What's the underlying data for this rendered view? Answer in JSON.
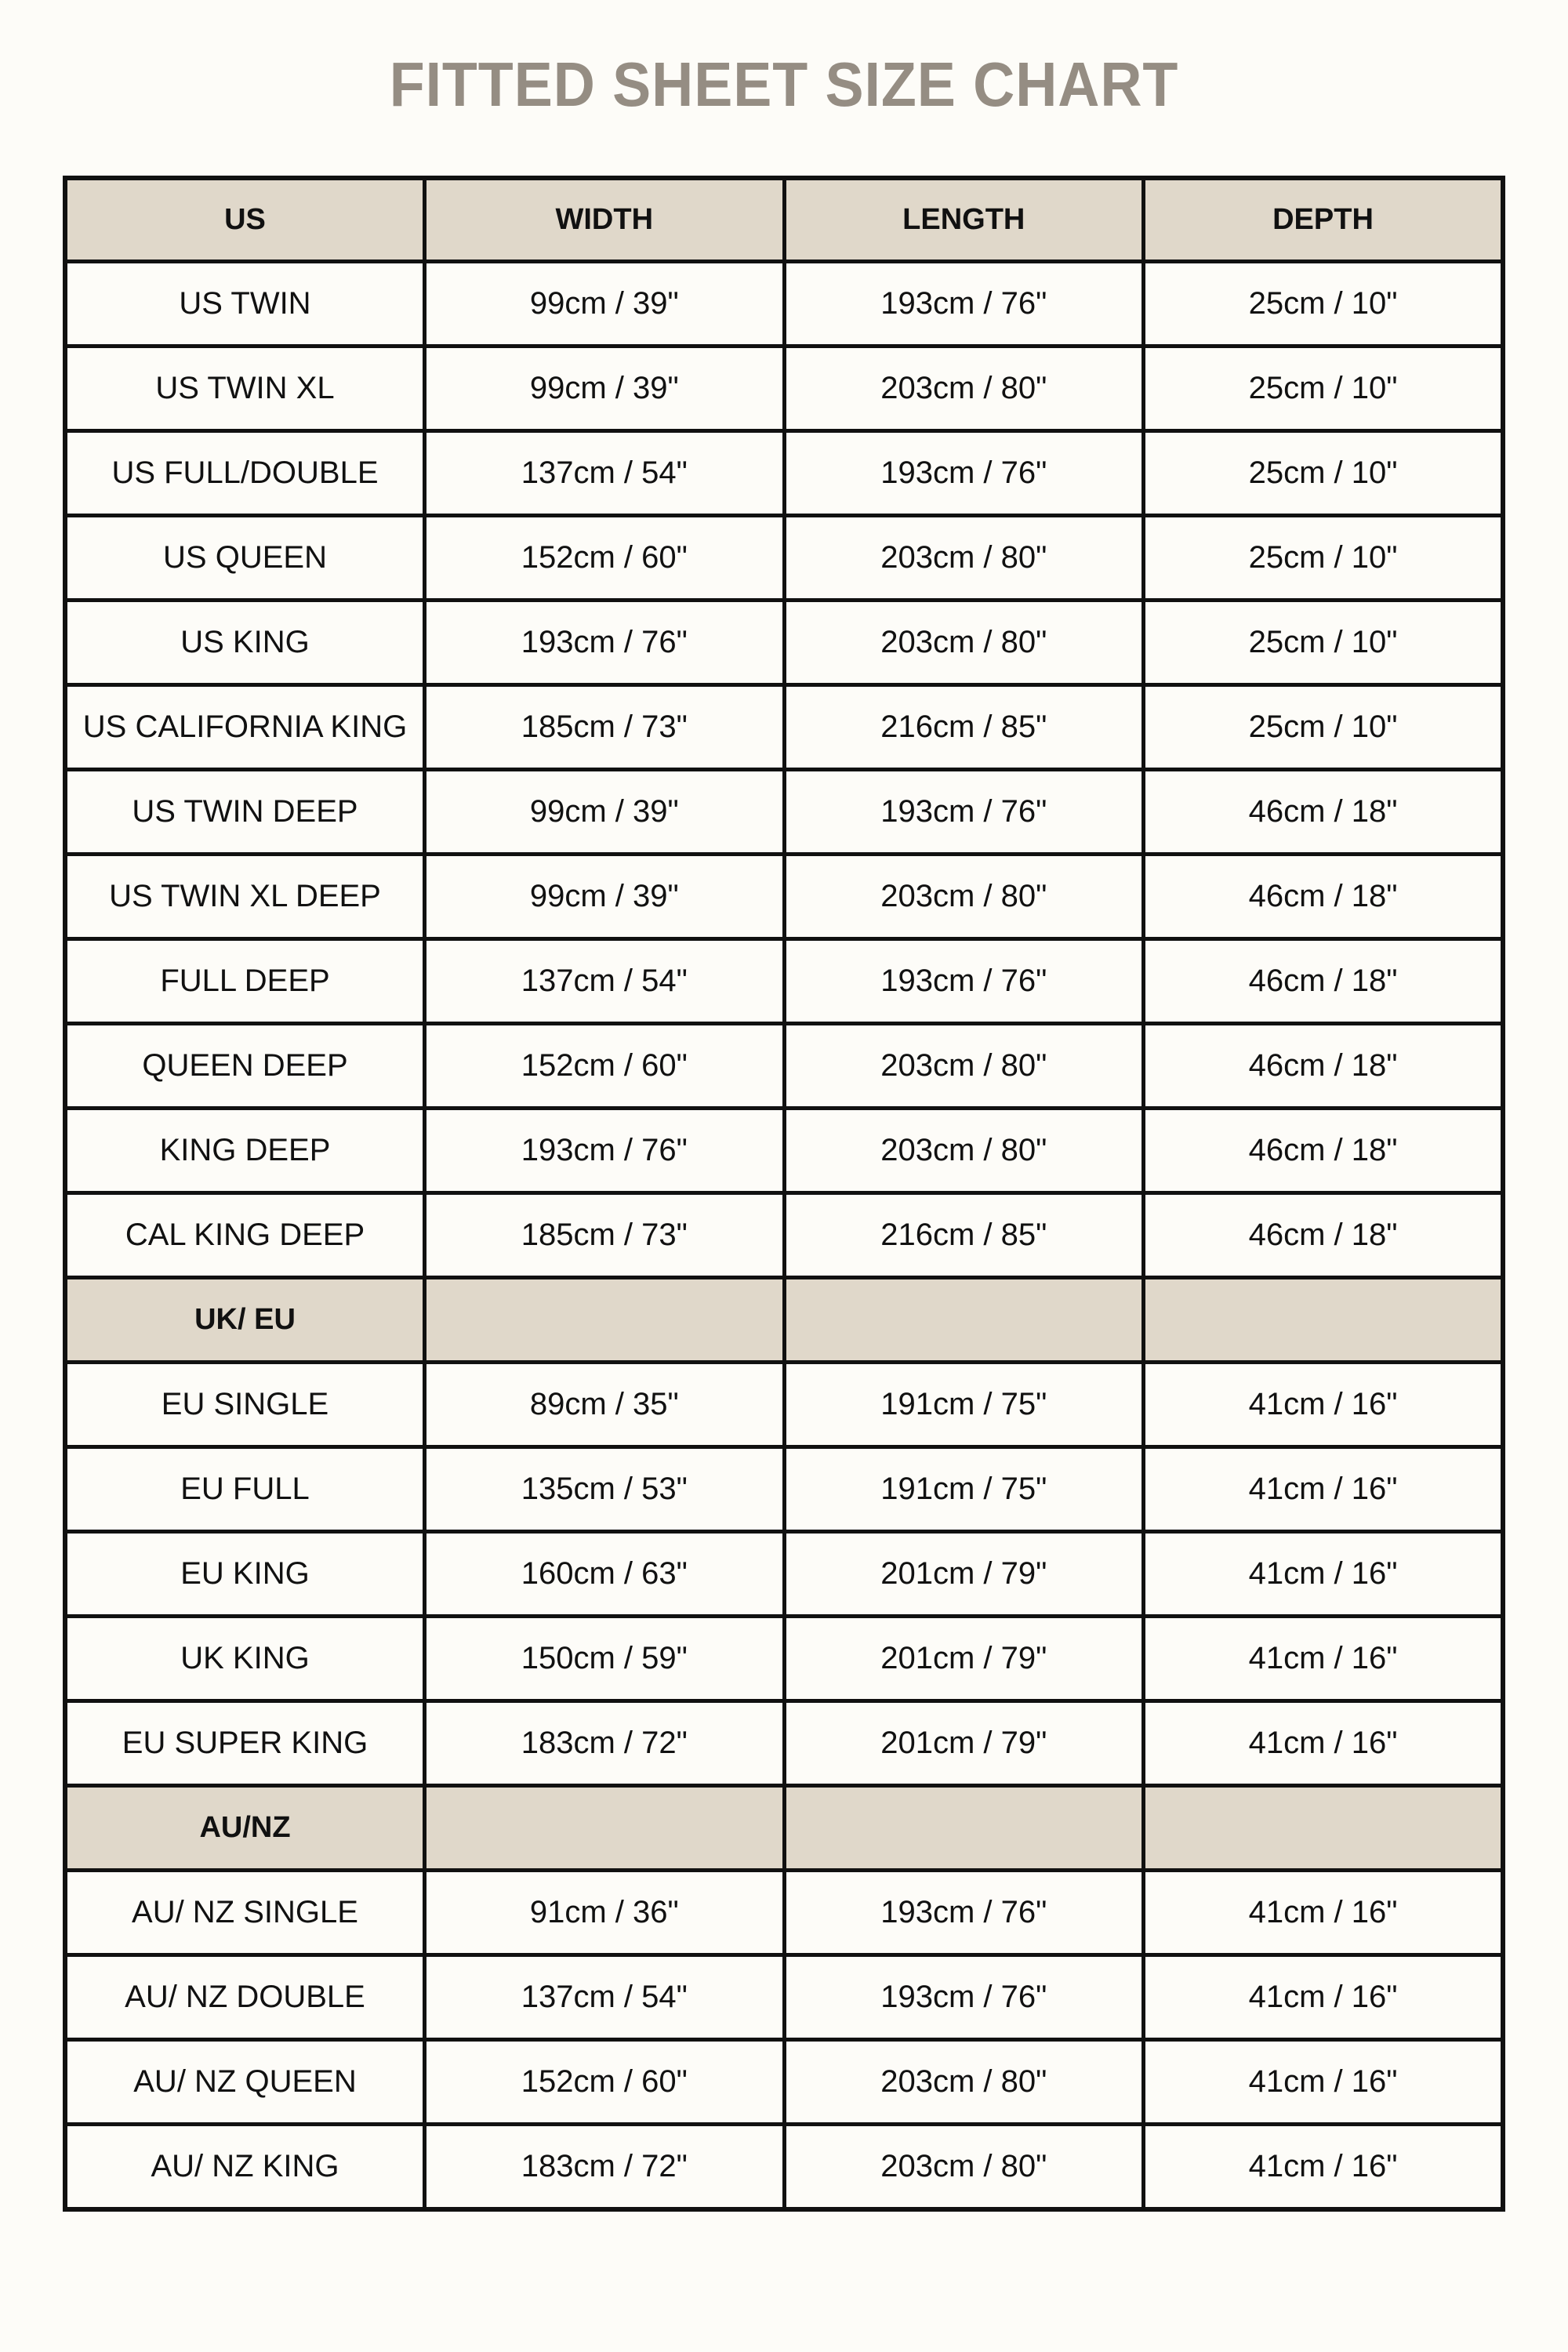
{
  "title": "FITTED SHEET SIZE CHART",
  "colors": {
    "title": "#958d83",
    "header_fill": "#e0d8ca",
    "background": "#fdfcf8",
    "border": "#111111"
  },
  "headers": [
    "US",
    "WIDTH",
    "LENGTH",
    "DEPTH"
  ],
  "rows": [
    {
      "type": "row",
      "cells": [
        "US TWIN",
        "99cm / 39\"",
        "193cm / 76\"",
        "25cm / 10\""
      ]
    },
    {
      "type": "row",
      "cells": [
        "US TWIN XL",
        "99cm / 39\"",
        "203cm / 80\"",
        "25cm / 10\""
      ]
    },
    {
      "type": "row",
      "cells": [
        "US FULL/DOUBLE",
        "137cm / 54\"",
        "193cm / 76\"",
        "25cm / 10\""
      ]
    },
    {
      "type": "row",
      "cells": [
        "US QUEEN",
        "152cm / 60\"",
        "203cm / 80\"",
        "25cm / 10\""
      ]
    },
    {
      "type": "row",
      "cells": [
        "US KING",
        "193cm / 76\"",
        "203cm / 80\"",
        "25cm / 10\""
      ]
    },
    {
      "type": "row",
      "cells": [
        "US CALIFORNIA KING",
        "185cm / 73\"",
        "216cm / 85\"",
        "25cm / 10\""
      ]
    },
    {
      "type": "row",
      "cells": [
        "US TWIN DEEP",
        "99cm / 39\"",
        "193cm / 76\"",
        "46cm / 18\""
      ]
    },
    {
      "type": "row",
      "cells": [
        "US TWIN XL DEEP",
        "99cm / 39\"",
        "203cm / 80\"",
        "46cm / 18\""
      ]
    },
    {
      "type": "row",
      "cells": [
        "FULL DEEP",
        "137cm / 54\"",
        "193cm / 76\"",
        "46cm / 18\""
      ]
    },
    {
      "type": "row",
      "cells": [
        "QUEEN DEEP",
        "152cm / 60\"",
        "203cm / 80\"",
        "46cm / 18\""
      ]
    },
    {
      "type": "row",
      "cells": [
        "KING DEEP",
        "193cm / 76\"",
        "203cm / 80\"",
        "46cm / 18\""
      ]
    },
    {
      "type": "row",
      "cells": [
        "CAL KING DEEP",
        "185cm / 73\"",
        "216cm / 85\"",
        "46cm / 18\""
      ]
    },
    {
      "type": "section",
      "cells": [
        "UK/ EU",
        "",
        "",
        ""
      ]
    },
    {
      "type": "row",
      "cells": [
        "EU SINGLE",
        "89cm / 35\"",
        "191cm / 75\"",
        "41cm / 16\""
      ]
    },
    {
      "type": "row",
      "cells": [
        "EU FULL",
        "135cm / 53\"",
        "191cm / 75\"",
        "41cm / 16\""
      ]
    },
    {
      "type": "row",
      "cells": [
        "EU KING",
        "160cm / 63\"",
        "201cm / 79\"",
        "41cm / 16\""
      ]
    },
    {
      "type": "row",
      "cells": [
        "UK KING",
        "150cm / 59\"",
        "201cm / 79\"",
        "41cm / 16\""
      ]
    },
    {
      "type": "row",
      "cells": [
        "EU SUPER KING",
        "183cm / 72\"",
        "201cm / 79\"",
        "41cm / 16\""
      ]
    },
    {
      "type": "section",
      "cells": [
        "AU/NZ",
        "",
        "",
        ""
      ]
    },
    {
      "type": "row",
      "cells": [
        "AU/ NZ SINGLE",
        "91cm / 36\"",
        "193cm / 76\"",
        "41cm / 16\""
      ]
    },
    {
      "type": "row",
      "cells": [
        "AU/ NZ DOUBLE",
        "137cm / 54\"",
        "193cm / 76\"",
        "41cm / 16\""
      ]
    },
    {
      "type": "row",
      "cells": [
        "AU/ NZ QUEEN",
        "152cm / 60\"",
        "203cm / 80\"",
        "41cm / 16\""
      ]
    },
    {
      "type": "row",
      "cells": [
        "AU/ NZ KING",
        "183cm / 72\"",
        "203cm / 80\"",
        "41cm / 16\""
      ]
    }
  ]
}
